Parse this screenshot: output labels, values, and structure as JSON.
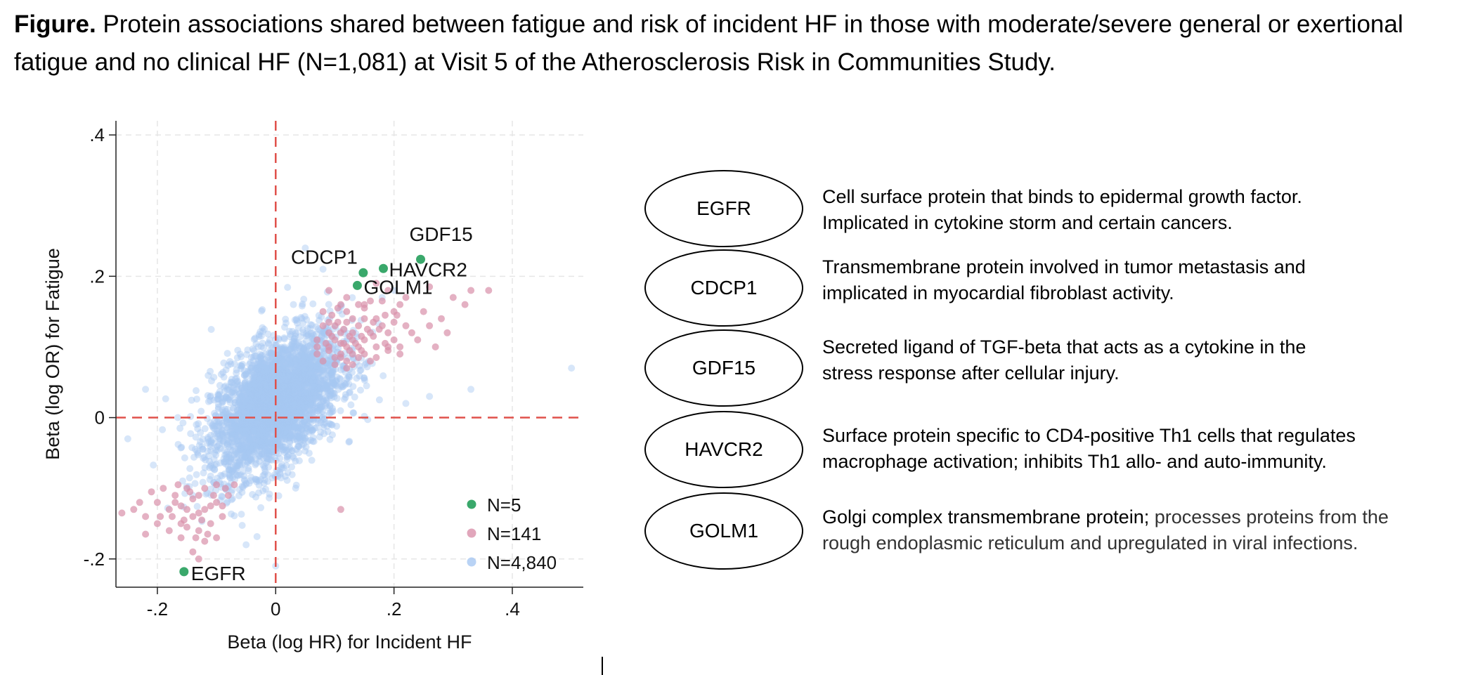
{
  "caption": {
    "bold": "Figure.",
    "text": " Protein associations shared between fatigue and risk of incident HF in those with moderate/severe general or exertional fatigue and no clinical HF (N=1,081) at Visit 5 of the Atherosclerosis Risk in Communities Study."
  },
  "chart_data": {
    "type": "scatter",
    "xlabel": "Beta (log HR) for Incident HF",
    "ylabel": "Beta (log OR) for Fatigue",
    "xlim": [
      -0.27,
      0.52
    ],
    "ylim": [
      -0.24,
      0.42
    ],
    "xticks": [
      -0.2,
      0,
      0.2,
      0.4
    ],
    "xtick_labels": [
      "-.2",
      "0",
      ".2",
      ".4"
    ],
    "yticks": [
      -0.2,
      0,
      0.2,
      0.4
    ],
    "ytick_labels": [
      "-.2",
      "0",
      ".2",
      ".4"
    ],
    "reference_lines": {
      "x": 0,
      "y": 0,
      "color": "#e0504a",
      "style": "dashed"
    },
    "legend": [
      {
        "label": "N=5",
        "color": "#3aa86b"
      },
      {
        "label": "N=141",
        "color": "#d990aa"
      },
      {
        "label": "N=4,840",
        "color": "#a7c8f2"
      }
    ],
    "highlighted": [
      {
        "name": "EGFR",
        "x": -0.155,
        "y": -0.218
      },
      {
        "name": "CDCP1",
        "x": 0.148,
        "y": 0.205
      },
      {
        "name": "GDF15",
        "x": 0.245,
        "y": 0.224
      },
      {
        "name": "HAVCR2",
        "x": 0.182,
        "y": 0.211
      },
      {
        "name": "GOLM1",
        "x": 0.138,
        "y": 0.187
      }
    ],
    "series": [
      {
        "name": "N=141",
        "color": "#d990aa",
        "points": [
          [
            0.08,
            0.15
          ],
          [
            0.1,
            0.13
          ],
          [
            0.12,
            0.17
          ],
          [
            0.09,
            0.1
          ],
          [
            0.11,
            0.09
          ],
          [
            0.13,
            0.12
          ],
          [
            0.15,
            0.11
          ],
          [
            0.17,
            0.14
          ],
          [
            0.19,
            0.1
          ],
          [
            0.21,
            0.09
          ],
          [
            0.23,
            0.12
          ],
          [
            0.16,
            0.08
          ],
          [
            0.14,
            0.1
          ],
          [
            0.12,
            0.07
          ],
          [
            0.1,
            0.11
          ],
          [
            0.18,
            0.13
          ],
          [
            0.2,
            0.15
          ],
          [
            0.22,
            0.17
          ],
          [
            0.25,
            0.15
          ],
          [
            0.28,
            0.14
          ],
          [
            0.3,
            0.17
          ],
          [
            0.33,
            0.18
          ],
          [
            0.36,
            0.18
          ],
          [
            0.15,
            0.16
          ],
          [
            0.13,
            0.14
          ],
          [
            0.11,
            0.16
          ],
          [
            0.09,
            0.12
          ],
          [
            0.07,
            0.11
          ],
          [
            0.07,
            0.09
          ],
          [
            0.09,
            0.095
          ],
          [
            0.11,
            0.12
          ],
          [
            0.14,
            0.13
          ],
          [
            0.16,
            0.12
          ],
          [
            0.12,
            0.1
          ],
          [
            0.1,
            0.085
          ],
          [
            0.08,
            0.08
          ],
          [
            0.13,
            0.09
          ],
          [
            0.17,
            0.1
          ],
          [
            0.2,
            0.11
          ],
          [
            0.24,
            0.11
          ],
          [
            0.19,
            0.12
          ],
          [
            0.15,
            0.14
          ],
          [
            0.13,
            0.11
          ],
          [
            0.11,
            0.105
          ],
          [
            0.09,
            0.135
          ],
          [
            0.12,
            0.15
          ],
          [
            0.16,
            0.165
          ],
          [
            0.18,
            0.165
          ],
          [
            0.2,
            0.135
          ],
          [
            0.22,
            0.13
          ],
          [
            0.14,
            0.085
          ],
          [
            0.12,
            0.08
          ],
          [
            0.1,
            0.075
          ],
          [
            0.085,
            0.105
          ],
          [
            0.095,
            0.145
          ],
          [
            0.105,
            0.135
          ],
          [
            0.115,
            0.125
          ],
          [
            0.125,
            0.115
          ],
          [
            0.135,
            0.105
          ],
          [
            0.145,
            0.095
          ],
          [
            0.155,
            0.125
          ],
          [
            0.165,
            0.135
          ],
          [
            0.175,
            0.125
          ],
          [
            0.185,
            0.105
          ],
          [
            0.21,
            0.1
          ],
          [
            0.26,
            0.13
          ],
          [
            0.27,
            0.1
          ],
          [
            0.29,
            0.12
          ],
          [
            0.32,
            0.16
          ],
          [
            0.17,
            0.19
          ],
          [
            0.19,
            0.18
          ],
          [
            0.21,
            0.16
          ],
          [
            0.14,
            0.16
          ],
          [
            0.12,
            0.135
          ],
          [
            0.105,
            0.155
          ],
          [
            0.09,
            0.18
          ],
          [
            0.11,
            0.085
          ],
          [
            0.13,
            0.075
          ],
          [
            0.15,
            0.09
          ],
          [
            0.17,
            0.085
          ],
          [
            0.19,
            0.095
          ],
          [
            0.08,
            0.13
          ],
          [
            0.07,
            0.1
          ],
          [
            0.095,
            0.115
          ],
          [
            0.125,
            0.095
          ],
          [
            0.145,
            0.115
          ],
          [
            0.165,
            0.115
          ],
          [
            0.185,
            0.145
          ],
          [
            0.205,
            0.145
          ],
          [
            0.115,
            0.105
          ],
          [
            -0.15,
            -0.1
          ],
          [
            -0.17,
            -0.11
          ],
          [
            -0.2,
            -0.12
          ],
          [
            -0.13,
            -0.11
          ],
          [
            -0.12,
            -0.13
          ],
          [
            -0.1,
            -0.12
          ],
          [
            -0.14,
            -0.14
          ],
          [
            -0.16,
            -0.15
          ],
          [
            -0.18,
            -0.13
          ],
          [
            -0.2,
            -0.15
          ],
          [
            -0.22,
            -0.14
          ],
          [
            -0.24,
            -0.13
          ],
          [
            -0.26,
            -0.135
          ],
          [
            -0.23,
            -0.12
          ],
          [
            -0.21,
            -0.105
          ],
          [
            -0.19,
            -0.1
          ],
          [
            -0.17,
            -0.12
          ],
          [
            -0.15,
            -0.13
          ],
          [
            -0.13,
            -0.16
          ],
          [
            -0.11,
            -0.15
          ],
          [
            -0.1,
            -0.17
          ],
          [
            -0.12,
            -0.175
          ],
          [
            -0.14,
            -0.19
          ],
          [
            -0.16,
            -0.17
          ],
          [
            -0.18,
            -0.16
          ],
          [
            -0.09,
            -0.14
          ],
          [
            -0.08,
            -0.11
          ],
          [
            -0.1,
            -0.095
          ],
          [
            -0.12,
            -0.1
          ],
          [
            -0.14,
            -0.115
          ],
          [
            -0.16,
            -0.125
          ],
          [
            -0.22,
            -0.165
          ],
          [
            -0.15,
            -0.155
          ],
          [
            -0.11,
            -0.125
          ],
          [
            -0.09,
            -0.125
          ],
          [
            -0.07,
            -0.095
          ],
          [
            -0.13,
            -0.135
          ],
          [
            -0.155,
            -0.145
          ],
          [
            -0.175,
            -0.14
          ],
          [
            -0.195,
            -0.14
          ],
          [
            -0.115,
            -0.165
          ],
          [
            -0.135,
            -0.17
          ],
          [
            -0.105,
            -0.11
          ],
          [
            -0.125,
            -0.145
          ],
          [
            -0.145,
            -0.105
          ],
          [
            -0.165,
            -0.095
          ],
          [
            -0.085,
            -0.1
          ],
          [
            0.26,
            0.185
          ],
          [
            -0.13,
            -0.2
          ],
          [
            0.11,
            -0.13
          ],
          [
            0.15,
            0.155
          ]
        ]
      },
      {
        "name": "N=4,840",
        "color": "#a7c8f2",
        "sample": "dense bivariate cloud centred near (0, 0.02), rho about 0.5",
        "points": []
      }
    ]
  },
  "proteins": [
    {
      "name": "EGFR",
      "desc1": "Cell surface protein that binds to epidermal growth factor.",
      "desc2": "Implicated in cytokine storm and certain cancers."
    },
    {
      "name": "CDCP1",
      "desc1": "Transmembrane protein involved in tumor metastasis and",
      "desc2": "implicated in myocardial fibroblast activity."
    },
    {
      "name": "GDF15",
      "desc1": "Secreted ligand of TGF-beta that acts as a cytokine in the",
      "desc2": "stress response after cellular injury."
    },
    {
      "name": "HAVCR2",
      "desc1": "Surface protein specific to CD4-positive Th1 cells that regulates",
      "desc2": "macrophage activation; inhibits Th1 allo- and auto-immunity."
    },
    {
      "name": "GOLM1",
      "desc1": "Golgi complex transmembrane protein;",
      "desc1b": " processes proteins from the",
      "desc2": "rough endoplasmic reticulum and upregulated in viral infections."
    }
  ]
}
